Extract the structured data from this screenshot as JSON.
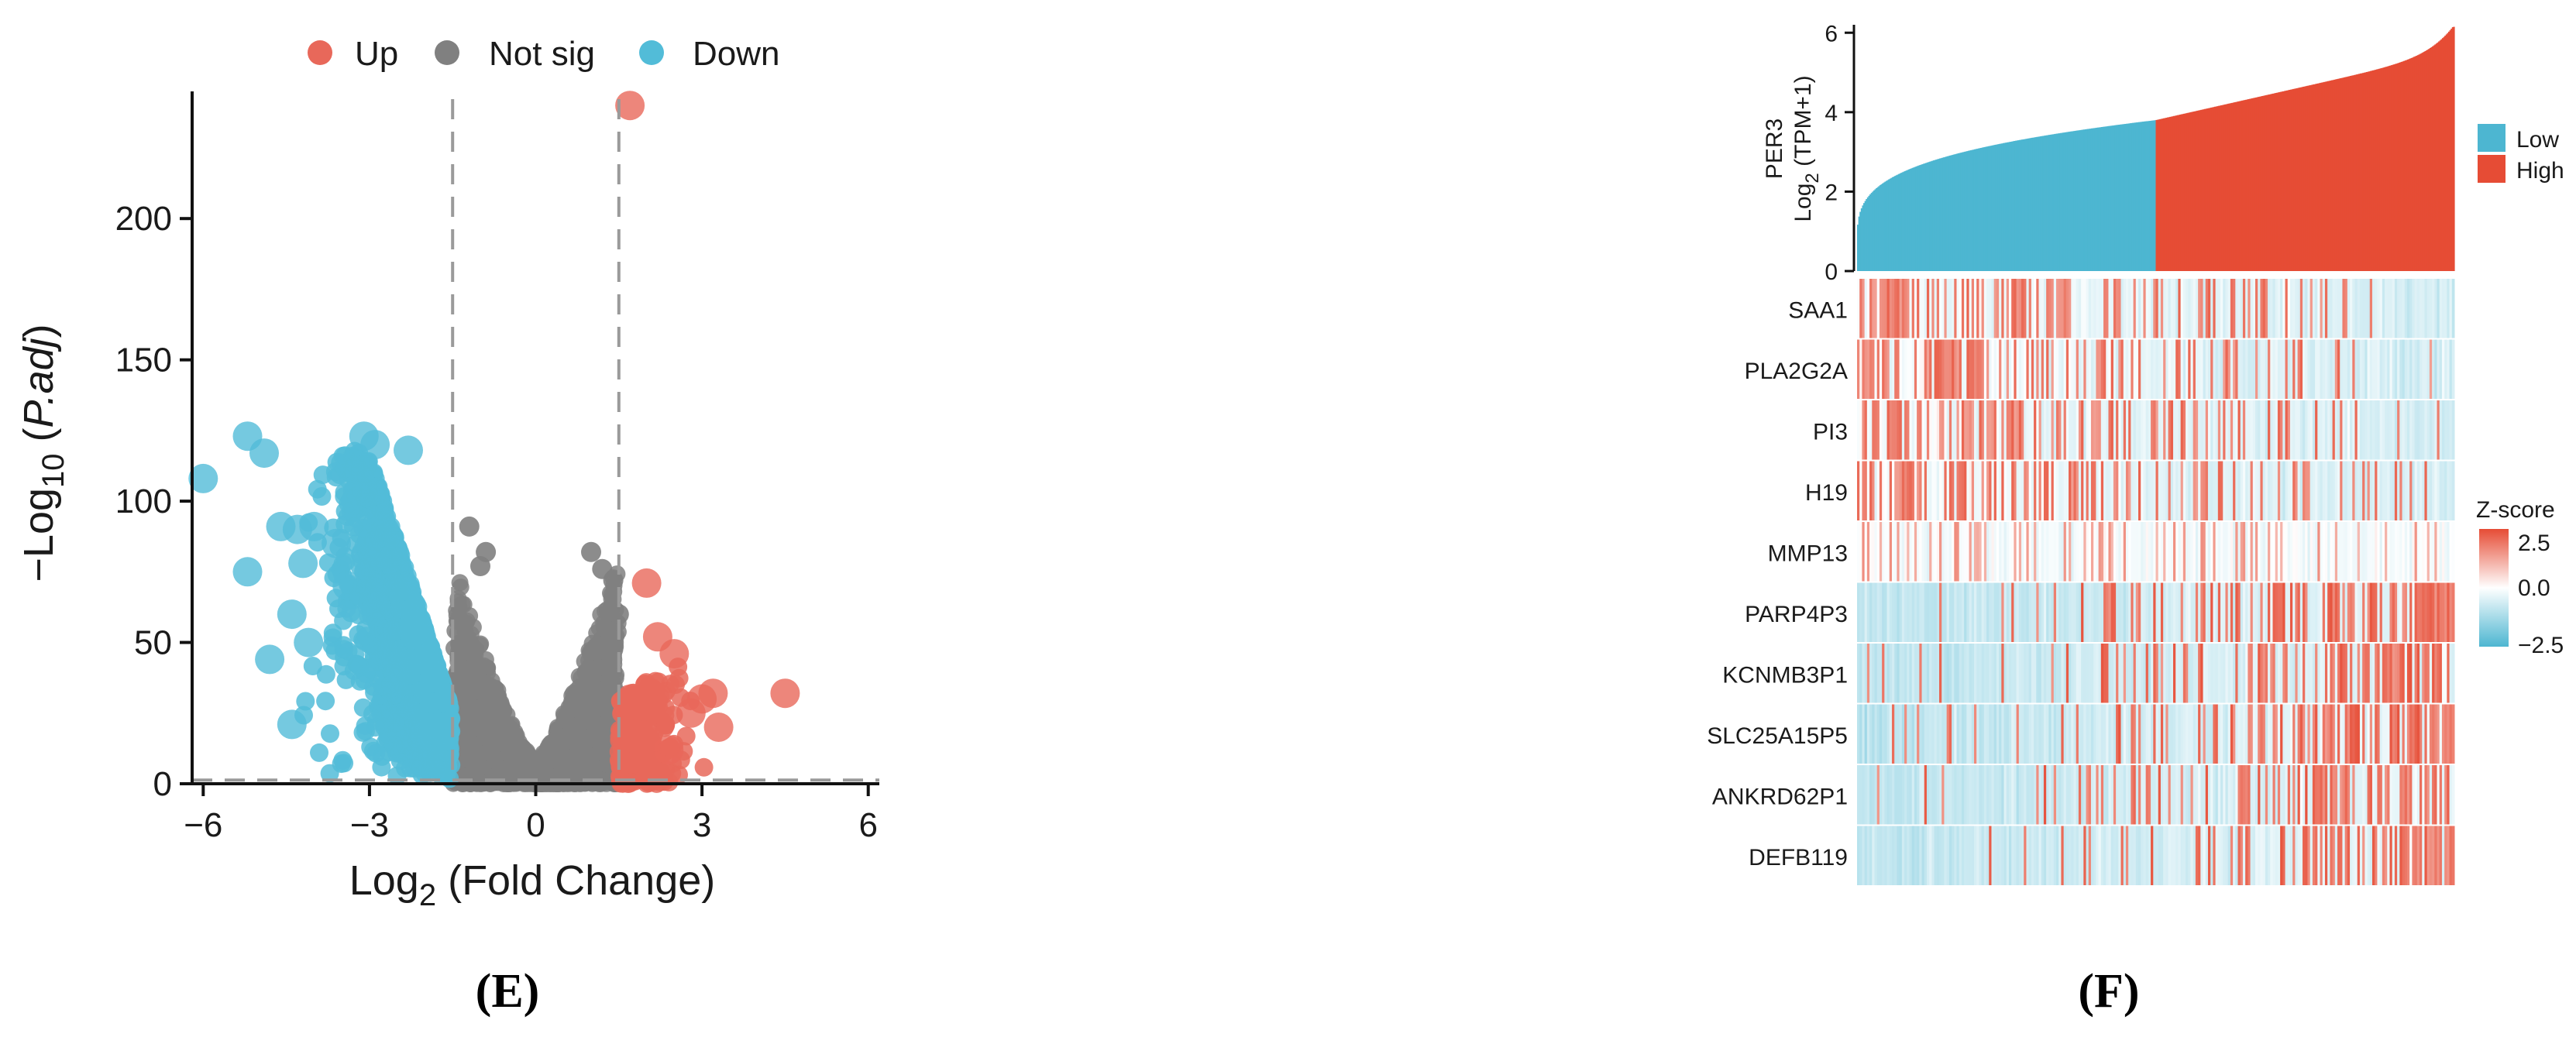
{
  "panels": {
    "E": "(E)",
    "F": "(F)"
  },
  "chart_data": [
    {
      "type": "scatter",
      "panel": "E",
      "xlabel_main": "Log",
      "xlabel_sub": "2",
      "xlabel_rest": " (Fold Change)",
      "ylabel_pre": "−Log",
      "ylabel_sub": "10",
      "ylabel_open": " (",
      "ylabel_italic": "P.adj",
      "ylabel_close": ")",
      "xlim": [
        -6.2,
        6.2
      ],
      "ylim": [
        0,
        245
      ],
      "xticks": [
        -6,
        -3,
        0,
        3,
        6
      ],
      "xtick_labels": [
        "−6",
        "−3",
        "0",
        "3",
        "6"
      ],
      "yticks": [
        0,
        50,
        100,
        150,
        200
      ],
      "ytick_labels": [
        "0",
        "50",
        "100",
        "150",
        "200"
      ],
      "thresholds": {
        "x": [
          -1.5,
          1.5
        ],
        "y": 1.3
      },
      "legend": {
        "placement": "top",
        "items": [
          {
            "label": "Up",
            "color": "#e8685a"
          },
          {
            "label": "Not sig",
            "color": "#808080"
          },
          {
            "label": "Down",
            "color": "#52bcd8"
          }
        ]
      },
      "colors": {
        "up": "#e8685a",
        "notsig": "#808080",
        "down": "#52bcd8"
      },
      "notable_points": {
        "up": [
          [
            1.7,
            240
          ],
          [
            2.0,
            71
          ],
          [
            4.5,
            32
          ],
          [
            3.2,
            32
          ],
          [
            2.5,
            46
          ],
          [
            3.0,
            30
          ],
          [
            2.2,
            52
          ],
          [
            2.8,
            25
          ],
          [
            3.3,
            20
          ],
          [
            2.4,
            12
          ]
        ],
        "down": [
          [
            -6.0,
            108
          ],
          [
            -5.2,
            123
          ],
          [
            -4.9,
            117
          ],
          [
            -5.2,
            75
          ],
          [
            -4.6,
            91
          ],
          [
            -4.3,
            90
          ],
          [
            -4.0,
            91
          ],
          [
            -4.2,
            78
          ],
          [
            -4.4,
            60
          ],
          [
            -4.8,
            44
          ],
          [
            -4.4,
            21
          ],
          [
            -4.1,
            50
          ],
          [
            -3.6,
            85
          ],
          [
            -3.4,
            70
          ],
          [
            -3.1,
            123
          ],
          [
            -2.9,
            120
          ],
          [
            -2.3,
            118
          ]
        ],
        "notsig": [
          [
            -1.2,
            91
          ],
          [
            -0.9,
            82
          ],
          [
            -1.0,
            77
          ],
          [
            1.0,
            82
          ],
          [
            1.2,
            76
          ],
          [
            1.4,
            72
          ],
          [
            1.5,
            60
          ]
        ]
      }
    },
    {
      "type": "heatmap",
      "panel": "F",
      "top_bar": {
        "ylabel_main": "PER3",
        "ylabel_sub_pre": "Log",
        "ylabel_sub_sub": "2",
        "ylabel_sub_rest": " (TPM+1)",
        "ylim": [
          0,
          6.2
        ],
        "yticks": [
          0,
          2,
          4,
          6
        ],
        "ytick_labels": [
          "0",
          "2",
          "4",
          "6"
        ],
        "n_samples": 480,
        "group_split_fraction": 0.5,
        "split_value": 3.8,
        "groups": [
          {
            "label": "Low",
            "color": "#4db6d1"
          },
          {
            "label": "High",
            "color": "#e64c35"
          }
        ]
      },
      "genes": [
        "SAA1",
        "PLA2G2A",
        "PI3",
        "H19",
        "MMP13",
        "PARP4P3",
        "KCNMB3P1",
        "SLC25A15P5",
        "ANKRD62P1",
        "DEFB119"
      ],
      "colorbar": {
        "title": "Z-score",
        "range": [
          -2.5,
          2.5
        ],
        "ticks": [
          2.5,
          0.0,
          -2.5
        ],
        "tick_labels": [
          "2.5",
          "0.0",
          "−2.5"
        ],
        "colors": {
          "high": "#e64c35",
          "mid": "#ffffff",
          "low": "#4db6d1"
        }
      },
      "gene_trend": {
        "SAA1": "high-in-low",
        "PLA2G2A": "high-in-low",
        "PI3": "high-in-low",
        "H19": "high-in-low",
        "MMP13": "weak-high-in-low",
        "PARP4P3": "high-in-high",
        "KCNMB3P1": "high-in-high",
        "SLC25A15P5": "high-in-high",
        "ANKRD62P1": "high-in-high",
        "DEFB119": "high-in-high"
      }
    }
  ]
}
